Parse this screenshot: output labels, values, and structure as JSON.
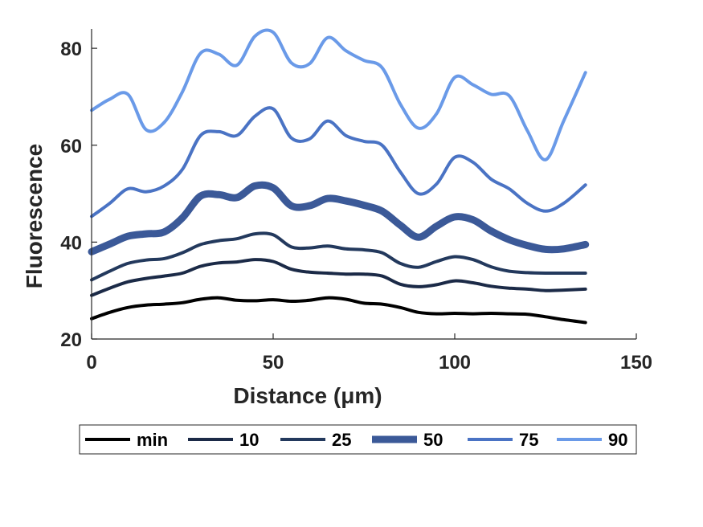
{
  "chart_data": {
    "type": "line",
    "xlabel": "Distance (μm)",
    "ylabel": "Fluorescence",
    "xlim": [
      0,
      150
    ],
    "ylim": [
      20,
      84
    ],
    "xticks": [
      0,
      50,
      100,
      150
    ],
    "yticks": [
      20,
      40,
      60,
      80
    ],
    "grid": false,
    "legend_position": "bottom-outside",
    "legend_orientation": "horizontal",
    "x": [
      0,
      5,
      10,
      15,
      20,
      25,
      30,
      35,
      40,
      45,
      50,
      55,
      60,
      65,
      70,
      75,
      80,
      85,
      90,
      95,
      100,
      105,
      110,
      115,
      120,
      125,
      130,
      136
    ],
    "series": [
      {
        "name": "min",
        "color": "#000000",
        "width": 4,
        "values": [
          24.2,
          25.5,
          26.5,
          27.0,
          27.2,
          27.5,
          28.2,
          28.5,
          28.0,
          27.9,
          28.1,
          27.8,
          28.0,
          28.5,
          28.2,
          27.4,
          27.2,
          26.5,
          25.5,
          25.2,
          25.3,
          25.2,
          25.3,
          25.2,
          25.1,
          24.6,
          24.0,
          23.4
        ]
      },
      {
        "name": "10",
        "color": "#1b2a47",
        "width": 4,
        "values": [
          29.0,
          30.5,
          31.8,
          32.5,
          33.0,
          33.6,
          35.0,
          35.7,
          35.9,
          36.4,
          36.0,
          34.4,
          33.8,
          33.6,
          33.4,
          33.4,
          33.0,
          31.3,
          30.8,
          31.2,
          32.0,
          31.6,
          30.9,
          30.5,
          30.3,
          30.0,
          30.1,
          30.3
        ]
      },
      {
        "name": "25",
        "color": "#23395d",
        "width": 4,
        "values": [
          32.2,
          34.0,
          35.6,
          36.3,
          36.6,
          37.8,
          39.5,
          40.3,
          40.7,
          41.7,
          41.5,
          39.0,
          38.8,
          39.2,
          38.6,
          38.4,
          37.8,
          35.6,
          34.8,
          36.0,
          37.0,
          36.4,
          34.9,
          34.0,
          33.7,
          33.6,
          33.6,
          33.6
        ]
      },
      {
        "name": "50",
        "color": "#3b5998",
        "width": 9,
        "values": [
          38.0,
          39.6,
          41.2,
          41.7,
          42.1,
          45.0,
          49.5,
          49.8,
          49.2,
          51.6,
          51.2,
          47.5,
          47.5,
          49.0,
          48.5,
          47.6,
          46.4,
          43.5,
          41.0,
          43.3,
          45.2,
          44.6,
          42.3,
          40.5,
          39.3,
          38.5,
          38.6,
          39.5
        ]
      },
      {
        "name": "75",
        "color": "#4a73c4",
        "width": 4,
        "values": [
          45.3,
          48.0,
          51.0,
          50.4,
          51.6,
          55.0,
          62.0,
          62.8,
          62.0,
          66.0,
          67.5,
          61.5,
          61.3,
          65.0,
          62.0,
          60.8,
          60.0,
          54.5,
          50.0,
          52.0,
          57.5,
          56.5,
          53.0,
          51.0,
          48.0,
          46.4,
          48.0,
          51.8
        ]
      },
      {
        "name": "90",
        "color": "#6a9ae8",
        "width": 4,
        "values": [
          67.2,
          69.5,
          70.5,
          63.2,
          64.7,
          71.0,
          79.0,
          78.8,
          76.5,
          82.5,
          83.3,
          77.0,
          76.8,
          82.2,
          79.5,
          77.5,
          76.0,
          68.5,
          63.5,
          66.5,
          74.0,
          72.5,
          70.5,
          70.2,
          63.0,
          57.0,
          65.0,
          75.0
        ]
      }
    ]
  }
}
